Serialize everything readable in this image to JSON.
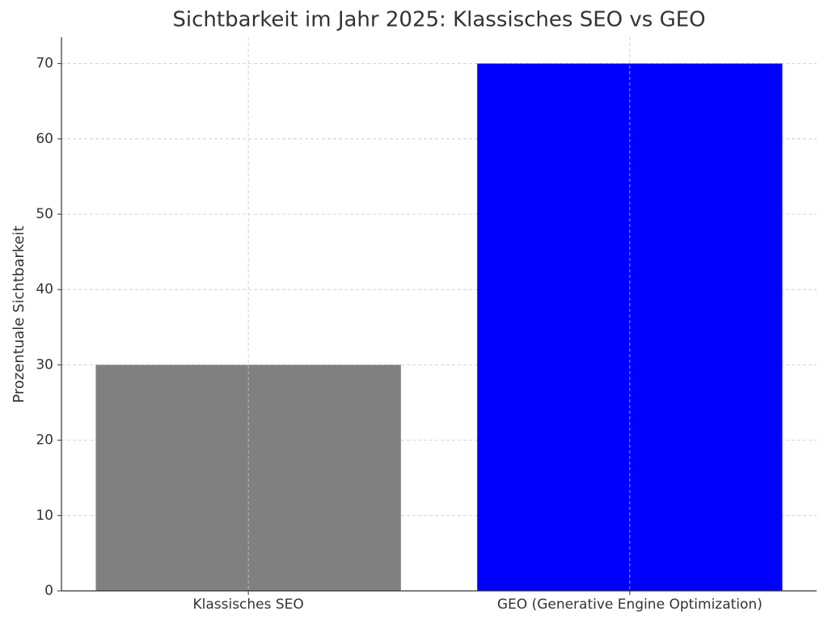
{
  "chart_data": {
    "type": "bar",
    "title": "Sichtbarkeit im Jahr 2025: Klassisches SEO vs GEO",
    "y_label": "Prozentuale Sichtbarkeit",
    "categories": [
      "Klassisches SEO",
      "GEO (Generative Engine Optimization)"
    ],
    "values": [
      30,
      70
    ],
    "colors": [
      "#808080",
      "#0000ff"
    ],
    "ylim": [
      0,
      73.5
    ],
    "yticks": [
      0,
      10,
      20,
      30,
      40,
      50,
      60,
      70
    ],
    "grid": true
  }
}
